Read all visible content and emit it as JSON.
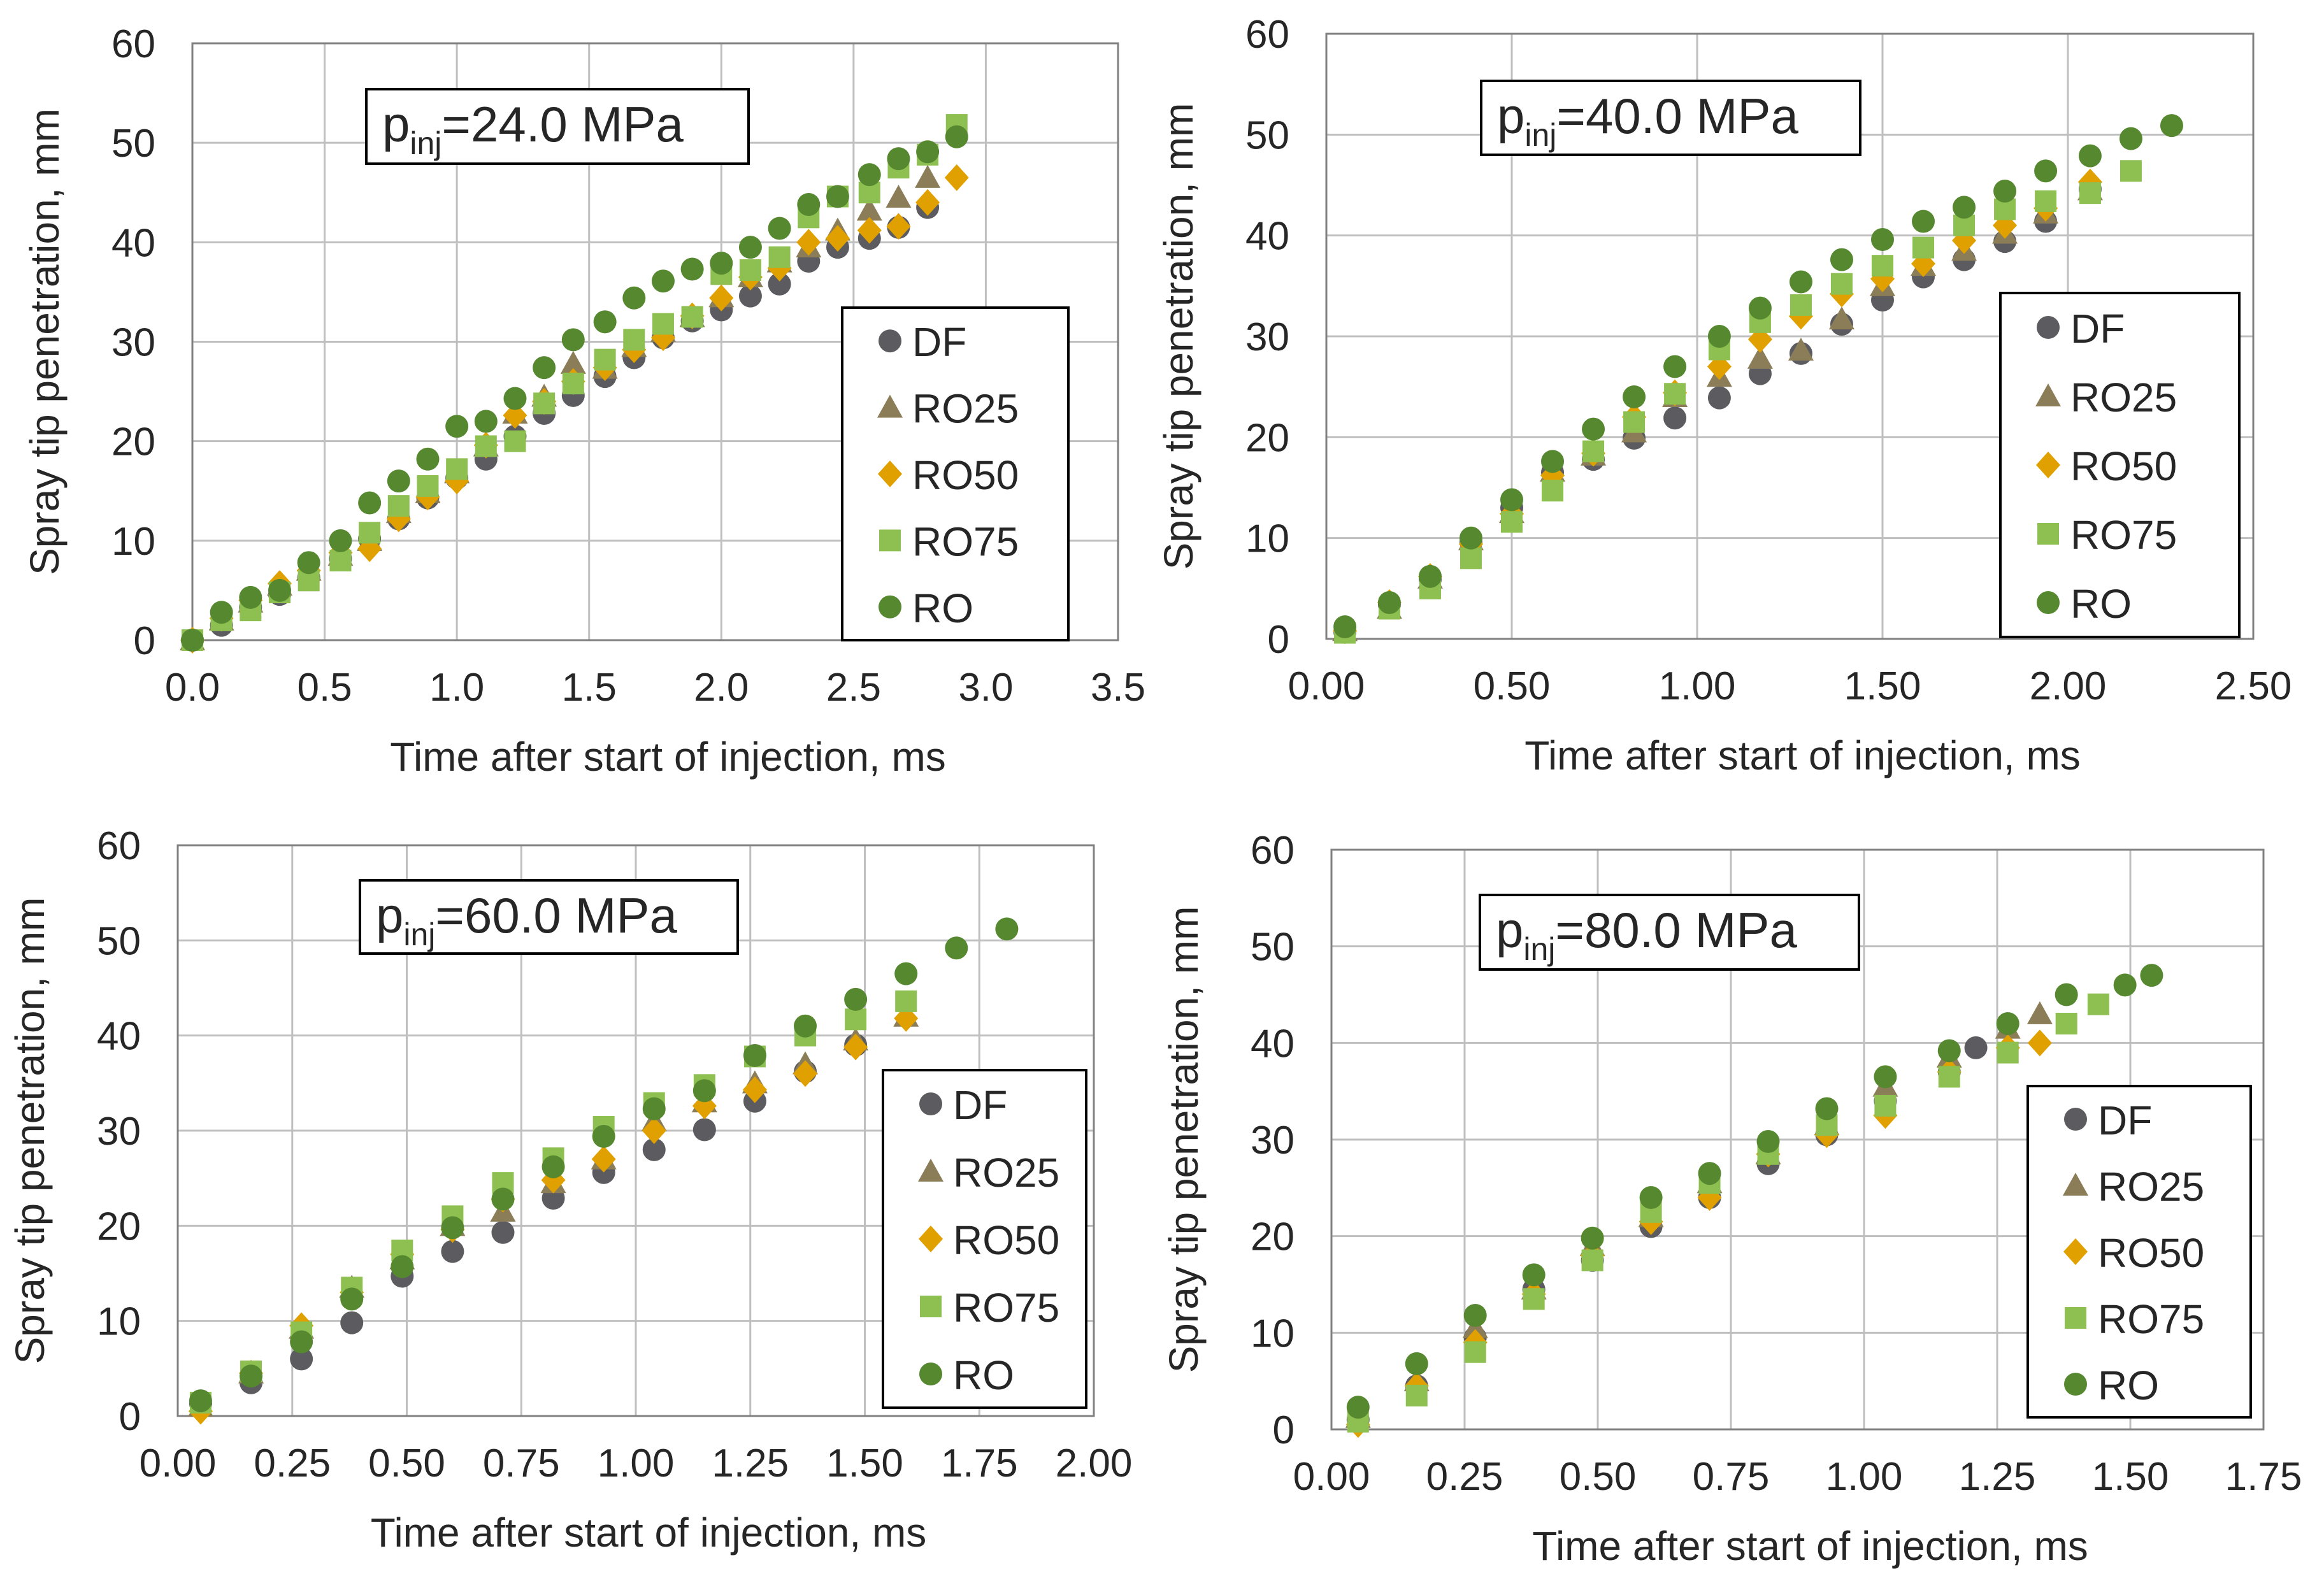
{
  "figure": {
    "colors": {
      "DF": "#5b5b60",
      "RO25": "#8b7d57",
      "RO50": "#e0a000",
      "RO75": "#8dc050",
      "RO": "#55882f",
      "axis": "#808080",
      "grid": "#bfbfbf",
      "text": "#262626"
    }
  },
  "chart_data": [
    {
      "type": "scatter",
      "title_main": "p",
      "title_sub": "inj",
      "title_rest": "=24.0 MPa",
      "xlabel": "Time  after start of injection, ms",
      "ylabel": "Spray tip penetration,  mm",
      "xlim": [
        0,
        3.5
      ],
      "ylim": [
        0,
        60
      ],
      "xticks": [
        "0.0",
        "0.5",
        "1.0",
        "1.5",
        "2.0",
        "2.5",
        "3.0",
        "3.5"
      ],
      "yticks": [
        "0",
        "10",
        "20",
        "30",
        "40",
        "50",
        "60"
      ],
      "grid": true,
      "legend_position": "lower-right",
      "legend": [
        "DF",
        "RO25",
        "RO50",
        "RO75",
        "RO"
      ],
      "series": [
        {
          "name": "DF",
          "marker": "circle",
          "x": [
            0.0,
            0.11,
            0.22,
            0.33,
            0.44,
            0.56,
            0.67,
            0.78,
            0.89,
            1.0,
            1.11,
            1.22,
            1.33,
            1.44,
            1.56,
            1.67,
            1.78,
            1.89,
            2.0,
            2.11,
            2.22,
            2.33,
            2.44,
            2.56,
            2.67,
            2.78
          ],
          "y": [
            0,
            1.5,
            3.3,
            4.6,
            6.3,
            8.2,
            10.2,
            12.2,
            14.3,
            16.3,
            18.2,
            20.5,
            22.8,
            24.6,
            26.5,
            28.4,
            30.4,
            32.1,
            33.2,
            34.6,
            35.8,
            38.1,
            39.5,
            40.4,
            41.5,
            43.5
          ]
        },
        {
          "name": "RO25",
          "marker": "triangle",
          "x": [
            0.0,
            0.11,
            0.22,
            0.33,
            0.44,
            0.56,
            0.67,
            0.78,
            0.89,
            1.0,
            1.11,
            1.22,
            1.33,
            1.44,
            1.56,
            1.67,
            1.78,
            1.89,
            2.0,
            2.11,
            2.22,
            2.33,
            2.44,
            2.56,
            2.67,
            2.78
          ],
          "y": [
            0,
            2.0,
            3.8,
            5.5,
            7.0,
            8.5,
            10.0,
            12.8,
            14.8,
            16.8,
            19.5,
            22.8,
            24.5,
            27.8,
            27.3,
            29.5,
            31.0,
            32.5,
            34.5,
            36.5,
            38.0,
            39.5,
            41.2,
            43.2,
            44.5,
            46.5
          ]
        },
        {
          "name": "RO50",
          "marker": "diamond",
          "x": [
            0.0,
            0.11,
            0.22,
            0.33,
            0.44,
            0.56,
            0.67,
            0.78,
            0.89,
            1.0,
            1.11,
            1.22,
            1.33,
            1.44,
            1.56,
            1.67,
            1.78,
            1.89,
            2.0,
            2.11,
            2.22,
            2.33,
            2.44,
            2.56,
            2.67,
            2.78,
            2.89
          ],
          "y": [
            0,
            2.2,
            4.0,
            5.7,
            7.0,
            8.8,
            9.2,
            12.2,
            14.4,
            16.0,
            19.6,
            22.6,
            24.0,
            26.0,
            27.4,
            29.2,
            30.4,
            32.6,
            34.4,
            36.5,
            37.4,
            40.0,
            40.4,
            41.2,
            41.6,
            44.0,
            46.5
          ]
        },
        {
          "name": "RO75",
          "marker": "square",
          "x": [
            0.0,
            0.11,
            0.22,
            0.33,
            0.44,
            0.56,
            0.67,
            0.78,
            0.89,
            1.0,
            1.11,
            1.22,
            1.33,
            1.44,
            1.56,
            1.67,
            1.78,
            1.89,
            2.0,
            2.11,
            2.22,
            2.33,
            2.44,
            2.56,
            2.67,
            2.78,
            2.89
          ],
          "y": [
            0,
            2.0,
            3.0,
            4.8,
            6.0,
            8.0,
            10.8,
            13.5,
            15.5,
            17.2,
            19.5,
            20.0,
            23.8,
            25.8,
            28.2,
            30.2,
            31.8,
            32.5,
            36.8,
            37.2,
            38.5,
            42.5,
            44.6,
            45.0,
            47.5,
            48.8,
            51.8
          ]
        },
        {
          "name": "RO",
          "marker": "circle",
          "x": [
            0.0,
            0.11,
            0.22,
            0.33,
            0.44,
            0.56,
            0.67,
            0.78,
            0.89,
            1.0,
            1.11,
            1.22,
            1.33,
            1.44,
            1.56,
            1.67,
            1.78,
            1.89,
            2.0,
            2.11,
            2.22,
            2.33,
            2.44,
            2.56,
            2.67,
            2.78,
            2.89
          ],
          "y": [
            0,
            2.8,
            4.3,
            5.0,
            7.8,
            10.0,
            13.8,
            16.0,
            18.2,
            21.5,
            22.0,
            24.3,
            27.4,
            30.2,
            32.0,
            34.4,
            36.1,
            37.3,
            37.9,
            39.5,
            41.4,
            43.8,
            44.6,
            46.8,
            48.4,
            49.1,
            50.6
          ]
        }
      ]
    },
    {
      "type": "scatter",
      "title_main": "p",
      "title_sub": "inj",
      "title_rest": "=40.0 MPa",
      "xlabel": "Time  after start of injection, ms",
      "ylabel": "Spray tip penetration,  mm",
      "xlim": [
        0,
        2.5
      ],
      "ylim": [
        0,
        60
      ],
      "xticks": [
        "0.00",
        "0.50",
        "1.00",
        "1.50",
        "2.00",
        "2.50"
      ],
      "yticks": [
        "0",
        "10",
        "20",
        "30",
        "40",
        "50",
        "60"
      ],
      "grid": true,
      "legend_position": "lower-right",
      "legend": [
        "DF",
        "RO25",
        "RO50",
        "RO75",
        "RO"
      ],
      "series": [
        {
          "name": "DF",
          "marker": "circle",
          "x": [
            0.05,
            0.17,
            0.28,
            0.39,
            0.5,
            0.61,
            0.72,
            0.83,
            0.94,
            1.06,
            1.17,
            1.28,
            1.39,
            1.5,
            1.61,
            1.72,
            1.83,
            1.94,
            2.06
          ],
          "y": [
            0.7,
            3.4,
            5.9,
            9.6,
            13.0,
            16.5,
            17.8,
            19.9,
            21.9,
            23.9,
            26.3,
            28.3,
            31.2,
            33.6,
            35.9,
            37.6,
            39.4,
            41.4,
            44.6
          ]
        },
        {
          "name": "RO25",
          "marker": "triangle",
          "x": [
            0.05,
            0.17,
            0.28,
            0.39,
            0.5,
            0.61,
            0.72,
            0.83,
            0.94,
            1.06,
            1.17,
            1.28,
            1.39,
            1.5,
            1.61,
            1.72,
            1.83,
            1.94,
            2.06
          ],
          "y": [
            0.8,
            3.0,
            6.0,
            9.8,
            12.5,
            16.6,
            18.2,
            20.5,
            24.0,
            26.0,
            27.8,
            28.6,
            31.7,
            35.0,
            37.0,
            38.5,
            40.2,
            42.2,
            44.5
          ]
        },
        {
          "name": "RO50",
          "marker": "diamond",
          "x": [
            0.05,
            0.17,
            0.28,
            0.39,
            0.5,
            0.61,
            0.72,
            0.83,
            0.94,
            1.06,
            1.17,
            1.28,
            1.39,
            1.5,
            1.61,
            1.72,
            1.83,
            1.94,
            2.06
          ],
          "y": [
            0.8,
            3.6,
            6.2,
            9.4,
            12.4,
            16.2,
            18.4,
            22.0,
            24.4,
            27.0,
            29.7,
            32.0,
            34.2,
            35.7,
            37.2,
            39.5,
            41.0,
            42.7,
            45.3
          ]
        },
        {
          "name": "RO75",
          "marker": "square",
          "x": [
            0.05,
            0.17,
            0.28,
            0.39,
            0.5,
            0.61,
            0.72,
            0.83,
            0.94,
            1.06,
            1.17,
            1.28,
            1.39,
            1.5,
            1.61,
            1.72,
            1.83,
            1.94,
            2.06,
            2.17
          ],
          "y": [
            0.6,
            3.0,
            5.0,
            8.0,
            11.6,
            14.7,
            18.6,
            21.5,
            24.3,
            28.7,
            31.4,
            33.1,
            35.2,
            37.0,
            38.8,
            41.0,
            42.6,
            43.4,
            44.2,
            46.4
          ]
        },
        {
          "name": "RO",
          "marker": "circle",
          "x": [
            0.05,
            0.17,
            0.28,
            0.39,
            0.5,
            0.61,
            0.72,
            0.83,
            0.94,
            1.06,
            1.17,
            1.28,
            1.39,
            1.5,
            1.61,
            1.72,
            1.83,
            1.94,
            2.06,
            2.17,
            2.28
          ],
          "y": [
            1.2,
            3.6,
            6.2,
            10.0,
            13.8,
            17.6,
            20.8,
            24.0,
            27.0,
            30.0,
            32.8,
            35.4,
            37.6,
            39.6,
            41.4,
            42.8,
            44.4,
            46.4,
            47.9,
            49.6,
            50.9
          ]
        }
      ]
    },
    {
      "type": "scatter",
      "title_main": "p",
      "title_sub": "inj",
      "title_rest": "=60.0 MPa",
      "xlabel": "Time  after start of injection, ms",
      "ylabel": "Spray tip penetration,  mm",
      "xlim": [
        0,
        2.0
      ],
      "ylim": [
        0,
        60
      ],
      "xticks": [
        "0.00",
        "0.25",
        "0.50",
        "0.75",
        "1.00",
        "1.25",
        "1.50",
        "1.75",
        "2.00"
      ],
      "yticks": [
        "0",
        "10",
        "20",
        "30",
        "40",
        "50",
        "60"
      ],
      "grid": true,
      "legend_position": "lower-right",
      "legend": [
        "DF",
        "RO25",
        "RO50",
        "RO75",
        "RO"
      ],
      "series": [
        {
          "name": "DF",
          "marker": "circle",
          "x": [
            0.05,
            0.16,
            0.27,
            0.38,
            0.49,
            0.6,
            0.71,
            0.82,
            0.93,
            1.04,
            1.15,
            1.26,
            1.37,
            1.48
          ],
          "y": [
            1.3,
            3.5,
            6.0,
            9.8,
            14.7,
            17.3,
            19.3,
            22.9,
            25.6,
            28.0,
            30.1,
            33.1,
            36.2,
            39.0
          ]
        },
        {
          "name": "RO25",
          "marker": "triangle",
          "x": [
            0.05,
            0.16,
            0.27,
            0.38,
            0.49,
            0.6,
            0.71,
            0.82,
            0.93,
            1.04,
            1.15,
            1.26,
            1.37,
            1.48,
            1.59
          ],
          "y": [
            1.0,
            4.5,
            9.2,
            13.5,
            16.5,
            20.0,
            21.5,
            24.5,
            27.0,
            31.0,
            33.0,
            35.0,
            37.0,
            39.5,
            42.0
          ]
        },
        {
          "name": "RO50",
          "marker": "diamond",
          "x": [
            0.05,
            0.16,
            0.27,
            0.38,
            0.49,
            0.6,
            0.71,
            0.82,
            0.93,
            1.04,
            1.15,
            1.26,
            1.37,
            1.48,
            1.59
          ],
          "y": [
            0.5,
            4.5,
            9.5,
            13.0,
            17.0,
            19.6,
            22.8,
            24.8,
            27.0,
            30.0,
            32.6,
            34.3,
            36.0,
            38.8,
            41.8
          ]
        },
        {
          "name": "RO75",
          "marker": "square",
          "x": [
            0.05,
            0.16,
            0.27,
            0.38,
            0.49,
            0.6,
            0.71,
            0.82,
            0.93,
            1.04,
            1.15,
            1.26,
            1.37,
            1.48,
            1.59
          ],
          "y": [
            1.4,
            4.7,
            8.8,
            13.5,
            17.4,
            21.0,
            24.5,
            27.1,
            30.4,
            32.9,
            34.8,
            37.8,
            40.0,
            41.7,
            43.6
          ]
        },
        {
          "name": "RO",
          "marker": "circle",
          "x": [
            0.05,
            0.16,
            0.27,
            0.38,
            0.49,
            0.6,
            0.71,
            0.82,
            0.93,
            1.04,
            1.15,
            1.26,
            1.37,
            1.48,
            1.59,
            1.7,
            1.81
          ],
          "y": [
            1.6,
            4.2,
            7.8,
            12.3,
            15.7,
            19.8,
            22.8,
            26.2,
            29.4,
            32.3,
            34.2,
            37.9,
            41.0,
            43.8,
            46.5,
            49.2,
            51.2
          ]
        }
      ]
    },
    {
      "type": "scatter",
      "title_main": "p",
      "title_sub": "inj",
      "title_rest": "=80.0 MPa",
      "xlabel": "Time  after start of injection, ms",
      "ylabel": "Spray tip penetration,  mm",
      "xlim": [
        0,
        1.75
      ],
      "ylim": [
        0,
        60
      ],
      "xticks": [
        "0.00",
        "0.25",
        "0.50",
        "0.75",
        "1.00",
        "1.25",
        "1.50",
        "1.75"
      ],
      "yticks": [
        "0",
        "10",
        "20",
        "30",
        "40",
        "50",
        "60"
      ],
      "grid": true,
      "legend_position": "lower-right",
      "legend": [
        "DF",
        "RO25",
        "RO50",
        "RO75",
        "RO"
      ],
      "series": [
        {
          "name": "DF",
          "marker": "circle",
          "x": [
            0.05,
            0.16,
            0.27,
            0.38,
            0.49,
            0.6,
            0.71,
            0.82,
            0.93,
            1.04,
            1.16,
            1.21
          ],
          "y": [
            1.0,
            4.5,
            9.5,
            14.5,
            17.5,
            21.0,
            24.0,
            27.5,
            30.5,
            34.0,
            37.0,
            39.5
          ]
        },
        {
          "name": "RO25",
          "marker": "triangle",
          "x": [
            0.05,
            0.16,
            0.27,
            0.38,
            0.49,
            0.6,
            0.71,
            0.82,
            0.93,
            1.04,
            1.16,
            1.27,
            1.33
          ],
          "y": [
            1.2,
            5.0,
            10.5,
            14.5,
            19.0,
            22.0,
            25.5,
            28.5,
            31.5,
            35.5,
            38.5,
            41.5,
            43.0
          ]
        },
        {
          "name": "RO50",
          "marker": "diamond",
          "x": [
            0.05,
            0.16,
            0.27,
            0.38,
            0.49,
            0.6,
            0.71,
            0.82,
            0.93,
            1.04,
            1.16,
            1.27,
            1.33
          ],
          "y": [
            0.5,
            4.5,
            9.0,
            14.0,
            18.0,
            21.5,
            24.0,
            28.5,
            30.5,
            32.5,
            37.0,
            39.5,
            40.0
          ]
        },
        {
          "name": "RO75",
          "marker": "square",
          "x": [
            0.05,
            0.16,
            0.27,
            0.38,
            0.49,
            0.6,
            0.71,
            0.82,
            0.93,
            1.04,
            1.16,
            1.27,
            1.38,
            1.44
          ],
          "y": [
            0.8,
            3.5,
            8.0,
            13.5,
            17.5,
            22.5,
            25.5,
            28.5,
            31.5,
            33.5,
            36.5,
            39.0,
            42.0,
            44.0
          ]
        },
        {
          "name": "RO",
          "marker": "circle",
          "x": [
            0.05,
            0.16,
            0.27,
            0.38,
            0.49,
            0.6,
            0.71,
            0.82,
            0.93,
            1.04,
            1.16,
            1.27,
            1.38,
            1.49,
            1.54
          ],
          "y": [
            2.3,
            6.8,
            11.8,
            16.0,
            19.8,
            24.0,
            26.5,
            29.8,
            33.2,
            36.5,
            39.2,
            42.0,
            45.0,
            46.0,
            47.0
          ]
        }
      ]
    }
  ]
}
